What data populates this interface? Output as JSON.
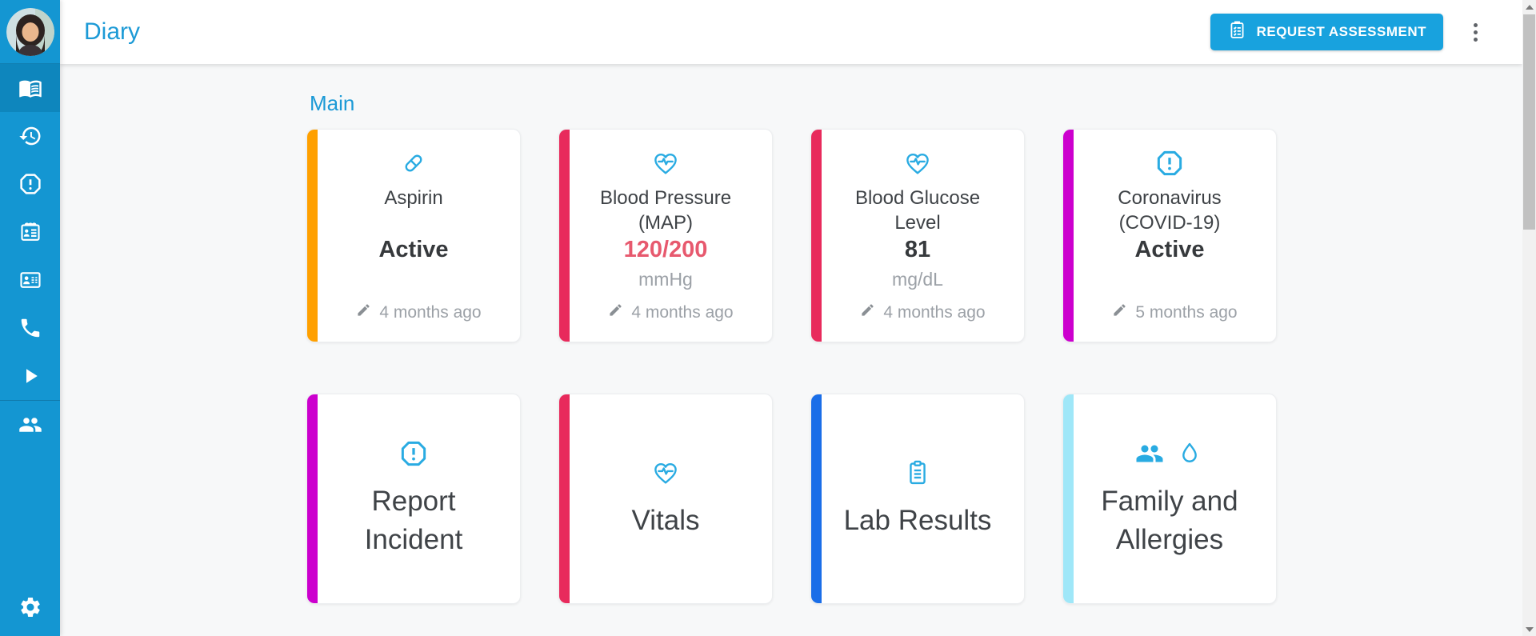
{
  "app": {
    "title": "Diary"
  },
  "header": {
    "request_assessment_label": "REQUEST ASSESSMENT",
    "request_assessment_icon": "clipboard-check-icon",
    "menu_icon": "kebab-menu-icon"
  },
  "sidebar": {
    "avatar": "user-avatar",
    "items": [
      {
        "id": "diary",
        "icon": "book-open-icon",
        "selected": true
      },
      {
        "id": "history",
        "icon": "history-icon",
        "selected": false
      },
      {
        "id": "incidents",
        "icon": "alert-octagon-icon",
        "selected": false
      },
      {
        "id": "appointments",
        "icon": "contact-calendar-icon",
        "selected": false
      },
      {
        "id": "contact-card",
        "icon": "contact-card-icon",
        "selected": false
      },
      {
        "id": "calls",
        "icon": "phone-icon",
        "selected": false
      },
      {
        "id": "media",
        "icon": "play-icon",
        "selected": false
      },
      {
        "id": "people",
        "icon": "people-icon",
        "selected": false,
        "divider_before": true
      },
      {
        "id": "settings",
        "icon": "gear-icon",
        "selected": false,
        "pinned_bottom": true
      }
    ]
  },
  "main": {
    "section_title": "Main",
    "summary_cards": [
      {
        "title": "Aspirin",
        "icon": "pill-icon",
        "stripe_color": "#FFA000",
        "value": "Active",
        "value_color": "#36393C",
        "unit": "",
        "updated": "4 months ago"
      },
      {
        "title": "Blood Pressure (MAP)",
        "icon": "heart-pulse-icon",
        "stripe_color": "#E82A5C",
        "value": "120/200",
        "value_color": "#E7596E",
        "unit": "mmHg",
        "updated": "4 months ago"
      },
      {
        "title": "Blood Glucose Level",
        "icon": "heart-pulse-icon",
        "stripe_color": "#E82A5C",
        "value": "81",
        "value_color": "#36393C",
        "unit": "mg/dL",
        "updated": "4 months ago"
      },
      {
        "title": "Coronavirus (COVID-19)",
        "icon": "alert-octagon-icon",
        "stripe_color": "#CC00CE",
        "value": "Active",
        "value_color": "#36393C",
        "unit": "",
        "updated": "5 months ago"
      }
    ],
    "nav_cards": [
      {
        "label": "Report Incident",
        "icons": [
          "alert-octagon-icon"
        ],
        "stripe_color": "#CC00CE"
      },
      {
        "label": "Vitals",
        "icons": [
          "heart-pulse-icon"
        ],
        "stripe_color": "#E82A5C"
      },
      {
        "label": "Lab Results",
        "icons": [
          "clipboard-list-icon"
        ],
        "stripe_color": "#1A6EE8"
      },
      {
        "label": "Family and Allergies",
        "icons": [
          "people-icon",
          "droplet-icon"
        ],
        "stripe_color": "#9FE7F8"
      }
    ],
    "updated_icon": "pencil-icon"
  },
  "scrollbar": {
    "up_icon": "scroll-up-icon",
    "down_icon": "scroll-down-icon"
  },
  "colors": {
    "sidebar": "#1496D2",
    "sidebar_selected": "#0E86BD",
    "accent_blue": "#1C9AD6",
    "button_blue": "#18A2DE",
    "card_icon_blue": "#29ABE2",
    "alert_value_red": "#E7596E",
    "muted_text": "#9CA1A7",
    "content_background": "#F7F8F9"
  }
}
